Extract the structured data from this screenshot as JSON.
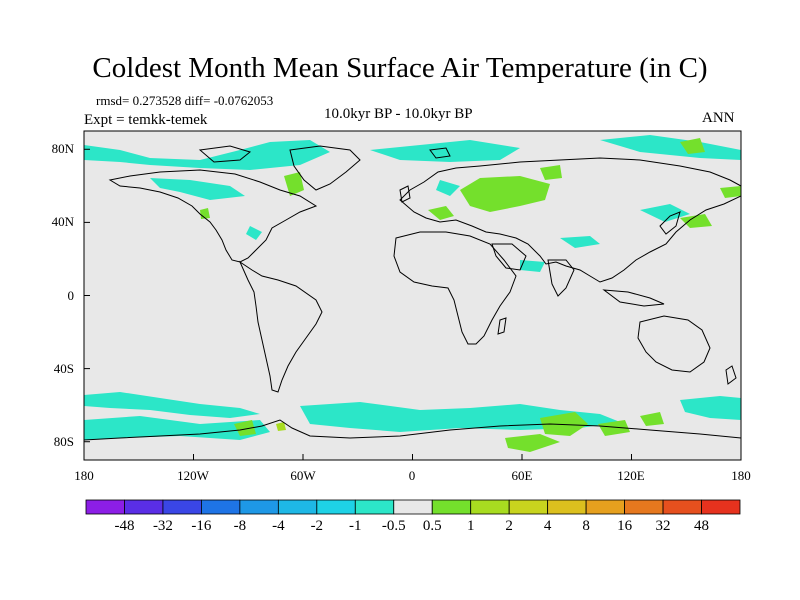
{
  "title": "Coldest Month Mean Surface Air Temperature (in C)",
  "stats": {
    "rmsd": "rmsd= 0.273528 diff= -0.0762053"
  },
  "experiment": "Expt = temkk-temek",
  "period": "10.0kyr BP - 10.0kyr BP",
  "season": "ANN",
  "lat_labels": [
    "80N",
    "40N",
    "0",
    "40S",
    "80S"
  ],
  "lon_labels": [
    "180",
    "120W",
    "60W",
    "0",
    "60E",
    "120E",
    "180"
  ],
  "colors": {
    "background": "#e8e8e8",
    "neg_small": "#2ce6c8",
    "pos_small": "#74e02c",
    "pos_medium": "#a8dc20",
    "coast": "#000000"
  },
  "colorbar": {
    "labels": [
      "-48",
      "-32",
      "-16",
      "-8",
      "-4",
      "-2",
      "-1",
      "-0.5",
      "0.5",
      "1",
      "2",
      "4",
      "8",
      "16",
      "32",
      "48"
    ],
    "colors": [
      "#8c1ee6",
      "#5a2ee6",
      "#3a46e6",
      "#1e74e6",
      "#1e98e6",
      "#1eb8e6",
      "#1ed2e6",
      "#2ce6c8",
      "#e8e8e8",
      "#74e02c",
      "#a8dc20",
      "#c8d41e",
      "#dcc01e",
      "#e6a01e",
      "#e6781e",
      "#e6501e",
      "#e6321e"
    ]
  },
  "chart_data": {
    "type": "map",
    "projection": "cylindrical-equidistant",
    "title": "Coldest Month Mean Surface Air Temperature (in C)",
    "lon_range": [
      -180,
      180
    ],
    "lat_range": [
      -90,
      90
    ],
    "xtick_labels": [
      "180",
      "120W",
      "60W",
      "0",
      "60E",
      "120E",
      "180"
    ],
    "ytick_labels": [
      "80N",
      "40N",
      "0",
      "40S",
      "80S"
    ],
    "contour_levels": [
      -48,
      -32,
      -16,
      -8,
      -4,
      -2,
      -1,
      -0.5,
      0.5,
      1,
      2,
      4,
      8,
      16,
      32,
      48
    ],
    "rmsd": 0.273528,
    "diff": -0.0762053,
    "regions": [
      {
        "name": "arctic-canada",
        "class": "-1 to -0.5",
        "lon_range": [
          -180,
          -20
        ],
        "lat_range": [
          60,
          85
        ]
      },
      {
        "name": "siberia",
        "class": "0.5 to 1",
        "lon_range": [
          30,
          90
        ],
        "lat_range": [
          45,
          65
        ]
      },
      {
        "name": "southern-ocean",
        "class": "-1 to -0.5",
        "lon_range": [
          -180,
          180
        ],
        "lat_range": [
          -80,
          -60
        ]
      },
      {
        "name": "east-antarctica",
        "class": "0.5 to 1",
        "lon_range": [
          40,
          120
        ],
        "lat_range": [
          -90,
          -70
        ]
      }
    ]
  }
}
